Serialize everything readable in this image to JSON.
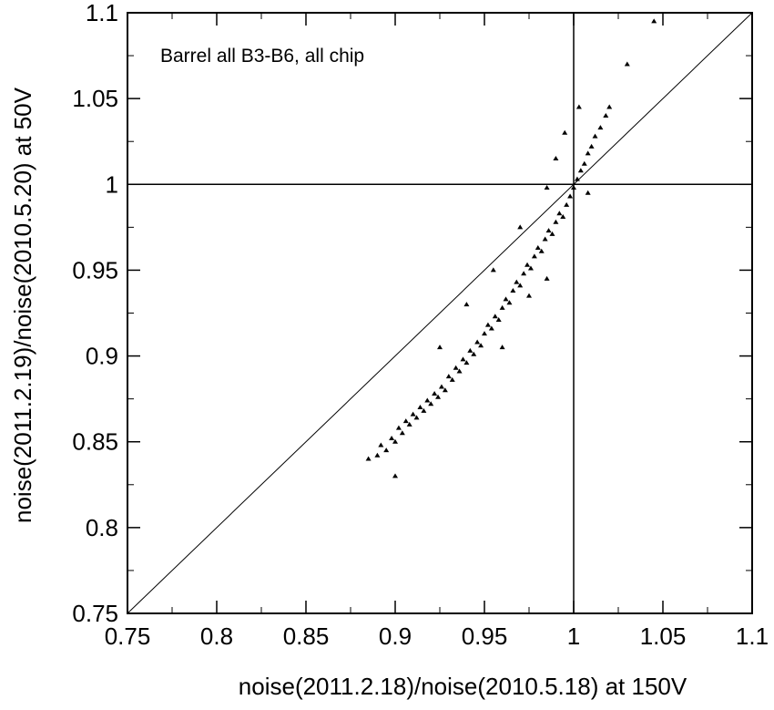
{
  "chart_data": {
    "type": "scatter",
    "title": "",
    "annotation": "Barrel all B3-B6, all chip",
    "xlabel": "noise(2011.2.18)/noise(2010.5.18) at 150V",
    "ylabel": "noise(2011.2.19)/noise(2010.5.20) at 50V",
    "xlim": [
      0.75,
      1.1
    ],
    "ylim": [
      0.75,
      1.1
    ],
    "x_ticks": [
      0.75,
      0.8,
      0.85,
      0.9,
      0.95,
      1.0,
      1.05,
      1.1
    ],
    "x_tick_labels": [
      "0.75",
      "0.8",
      "0.85",
      "0.9",
      "0.95",
      "1",
      "1.05",
      "1.1"
    ],
    "y_ticks": [
      0.75,
      0.8,
      0.85,
      0.9,
      0.95,
      1.0,
      1.05,
      1.1
    ],
    "y_tick_labels": [
      "0.75",
      "0.8",
      "0.85",
      "0.9",
      "0.95",
      "1",
      "1.05",
      "1.1"
    ],
    "reference_lines": {
      "vertical_x": 1.0,
      "horizontal_y": 1.0,
      "diagonal": "y = x"
    },
    "marker_color": "#000000",
    "grid": false,
    "legend": "none",
    "series": [
      {
        "points": [
          [
            0.885,
            0.84
          ],
          [
            0.89,
            0.842
          ],
          [
            0.892,
            0.848
          ],
          [
            0.895,
            0.845
          ],
          [
            0.898,
            0.852
          ],
          [
            0.9,
            0.85
          ],
          [
            0.902,
            0.858
          ],
          [
            0.904,
            0.855
          ],
          [
            0.906,
            0.862
          ],
          [
            0.908,
            0.86
          ],
          [
            0.91,
            0.866
          ],
          [
            0.912,
            0.864
          ],
          [
            0.914,
            0.87
          ],
          [
            0.916,
            0.868
          ],
          [
            0.918,
            0.874
          ],
          [
            0.92,
            0.872
          ],
          [
            0.922,
            0.878
          ],
          [
            0.924,
            0.876
          ],
          [
            0.926,
            0.882
          ],
          [
            0.928,
            0.88
          ],
          [
            0.93,
            0.888
          ],
          [
            0.932,
            0.886
          ],
          [
            0.934,
            0.893
          ],
          [
            0.936,
            0.891
          ],
          [
            0.938,
            0.898
          ],
          [
            0.94,
            0.896
          ],
          [
            0.942,
            0.903
          ],
          [
            0.944,
            0.901
          ],
          [
            0.946,
            0.908
          ],
          [
            0.948,
            0.906
          ],
          [
            0.95,
            0.913
          ],
          [
            0.952,
            0.918
          ],
          [
            0.954,
            0.916
          ],
          [
            0.956,
            0.923
          ],
          [
            0.958,
            0.921
          ],
          [
            0.96,
            0.928
          ],
          [
            0.962,
            0.933
          ],
          [
            0.964,
            0.931
          ],
          [
            0.966,
            0.938
          ],
          [
            0.968,
            0.943
          ],
          [
            0.97,
            0.941
          ],
          [
            0.972,
            0.948
          ],
          [
            0.974,
            0.953
          ],
          [
            0.976,
            0.951
          ],
          [
            0.978,
            0.958
          ],
          [
            0.98,
            0.963
          ],
          [
            0.982,
            0.961
          ],
          [
            0.984,
            0.968
          ],
          [
            0.986,
            0.973
          ],
          [
            0.988,
            0.971
          ],
          [
            0.99,
            0.978
          ],
          [
            0.992,
            0.983
          ],
          [
            0.994,
            0.981
          ],
          [
            0.996,
            0.988
          ],
          [
            0.998,
            0.993
          ],
          [
            1.0,
            0.998
          ],
          [
            1.002,
            1.003
          ],
          [
            1.004,
            1.008
          ],
          [
            1.006,
            1.012
          ],
          [
            1.008,
            1.018
          ],
          [
            1.01,
            1.022
          ],
          [
            1.012,
            1.028
          ],
          [
            1.015,
            1.033
          ],
          [
            1.018,
            1.04
          ],
          [
            1.02,
            1.045
          ],
          [
            1.03,
            1.07
          ],
          [
            1.045,
            1.095
          ],
          [
            1.003,
            1.045
          ],
          [
            0.97,
            0.975
          ],
          [
            0.955,
            0.95
          ],
          [
            0.94,
            0.93
          ],
          [
            0.925,
            0.905
          ],
          [
            0.99,
            1.015
          ],
          [
            0.995,
            1.03
          ],
          [
            1.008,
            0.995
          ],
          [
            0.985,
            0.945
          ],
          [
            0.96,
            0.905
          ],
          [
            0.9,
            0.83
          ],
          [
            0.985,
            0.998
          ],
          [
            0.975,
            0.935
          ]
        ]
      }
    ]
  }
}
